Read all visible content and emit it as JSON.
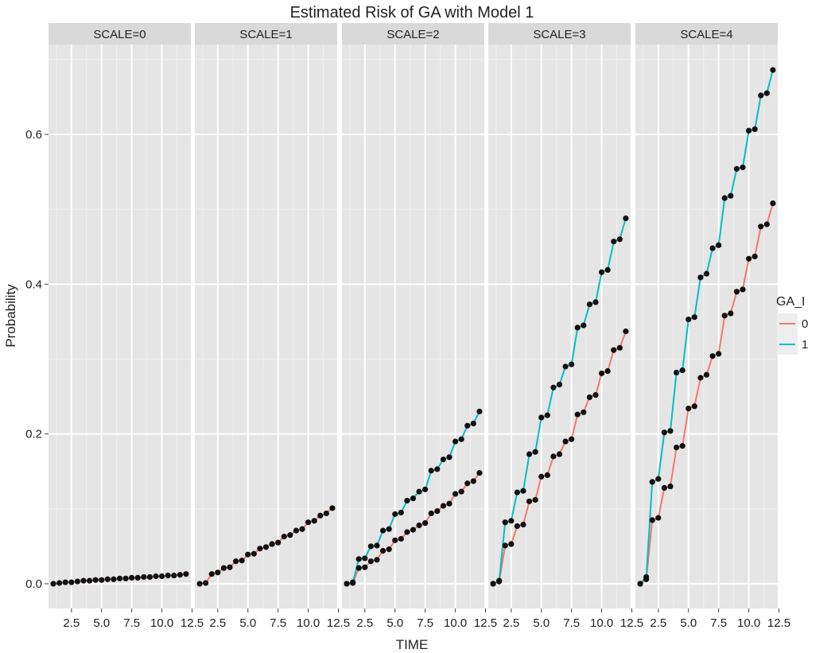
{
  "chart_data": {
    "type": "line",
    "title": "Estimated Risk of GA with Model 1",
    "xlabel": "TIME",
    "ylabel": "Probability",
    "xlim": [
      0.6,
      12.4
    ],
    "ylim": [
      -0.033,
      0.72
    ],
    "xticks": [
      2.5,
      5.0,
      7.5,
      10.0,
      12.5
    ],
    "xtick_labels": [
      "2.5",
      "5.0",
      "7.5",
      "10.0",
      "12.5"
    ],
    "yticks": [
      0.0,
      0.2,
      0.4,
      0.6
    ],
    "ytick_labels": [
      "0.0",
      "0.2",
      "0.4",
      "0.6"
    ],
    "grid": true,
    "legend": {
      "title": "GA_I",
      "position": "right",
      "entries": [
        {
          "label": "0",
          "color": "#F8766D"
        },
        {
          "label": "1",
          "color": "#00BFC4"
        }
      ]
    },
    "time": [
      1.0,
      1.5,
      2.0,
      2.5,
      3.0,
      3.5,
      4.0,
      4.5,
      5.0,
      5.5,
      6.0,
      6.5,
      7.0,
      7.5,
      8.0,
      8.5,
      9.0,
      9.5,
      10.0,
      10.5,
      11.0,
      11.5,
      12.0
    ],
    "panels": [
      {
        "label": "SCALE=0",
        "series": [
          {
            "group": "0",
            "color": "#F8766D",
            "values": [
              0.0,
              0.001,
              0.002,
              0.002,
              0.003,
              0.004,
              0.004,
              0.005,
              0.005,
              0.006,
              0.006,
              0.007,
              0.007,
              0.008,
              0.008,
              0.009,
              0.009,
              0.01,
              0.01,
              0.011,
              0.011,
              0.012,
              0.013
            ]
          }
        ]
      },
      {
        "label": "SCALE=1",
        "series": [
          {
            "group": "0",
            "color": "#F8766D",
            "values": [
              0.0,
              0.001,
              0.013,
              0.015,
              0.021,
              0.022,
              0.03,
              0.031,
              0.039,
              0.04,
              0.047,
              0.049,
              0.053,
              0.055,
              0.063,
              0.065,
              0.071,
              0.073,
              0.082,
              0.084,
              0.091,
              0.094,
              0.101
            ]
          }
        ]
      },
      {
        "label": "SCALE=2",
        "series": [
          {
            "group": "0",
            "color": "#F8766D",
            "values": [
              0.0,
              0.001,
              0.021,
              0.022,
              0.03,
              0.032,
              0.044,
              0.046,
              0.058,
              0.06,
              0.069,
              0.072,
              0.078,
              0.081,
              0.094,
              0.097,
              0.104,
              0.107,
              0.12,
              0.123,
              0.134,
              0.137,
              0.148
            ]
          },
          {
            "group": "1",
            "color": "#00BFC4",
            "values": [
              0.0,
              0.002,
              0.033,
              0.034,
              0.05,
              0.051,
              0.071,
              0.073,
              0.093,
              0.095,
              0.111,
              0.114,
              0.123,
              0.126,
              0.151,
              0.153,
              0.166,
              0.169,
              0.19,
              0.193,
              0.211,
              0.214,
              0.23
            ]
          }
        ]
      },
      {
        "label": "SCALE=3",
        "series": [
          {
            "group": "0",
            "color": "#F8766D",
            "values": [
              0.0,
              0.003,
              0.051,
              0.053,
              0.077,
              0.079,
              0.11,
              0.112,
              0.143,
              0.145,
              0.17,
              0.173,
              0.19,
              0.193,
              0.226,
              0.229,
              0.249,
              0.252,
              0.281,
              0.284,
              0.312,
              0.315,
              0.337
            ]
          },
          {
            "group": "1",
            "color": "#00BFC4",
            "values": [
              0.0,
              0.004,
              0.082,
              0.084,
              0.122,
              0.124,
              0.173,
              0.176,
              0.222,
              0.225,
              0.262,
              0.266,
              0.29,
              0.293,
              0.342,
              0.345,
              0.373,
              0.376,
              0.416,
              0.419,
              0.457,
              0.46,
              0.488
            ]
          }
        ]
      },
      {
        "label": "SCALE=4",
        "series": [
          {
            "group": "0",
            "color": "#F8766D",
            "values": [
              0.0,
              0.006,
              0.085,
              0.088,
              0.128,
              0.13,
              0.182,
              0.184,
              0.234,
              0.237,
              0.275,
              0.279,
              0.304,
              0.307,
              0.358,
              0.361,
              0.39,
              0.393,
              0.434,
              0.437,
              0.477,
              0.48,
              0.508
            ]
          },
          {
            "group": "1",
            "color": "#00BFC4",
            "values": [
              0.0,
              0.009,
              0.136,
              0.14,
              0.202,
              0.204,
              0.282,
              0.285,
              0.353,
              0.356,
              0.409,
              0.414,
              0.448,
              0.452,
              0.515,
              0.518,
              0.554,
              0.556,
              0.605,
              0.607,
              0.652,
              0.655,
              0.686
            ]
          }
        ]
      }
    ]
  }
}
